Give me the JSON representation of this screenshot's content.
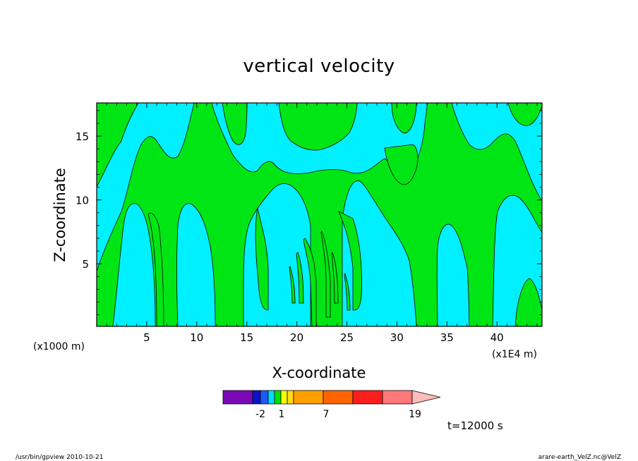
{
  "chart_data": {
    "type": "heatmap",
    "title": "vertical velocity",
    "xlabel": "X-coordinate",
    "ylabel": "Z-coordinate",
    "x_unit_left": "(x1000 m)",
    "x_unit_right": "(x1E4 m)",
    "xlim": [
      0,
      44.5
    ],
    "ylim": [
      0.1,
      17.6
    ],
    "x_ticks": [
      "5",
      "10",
      "15",
      "20",
      "25",
      "30",
      "35",
      "40"
    ],
    "x_tick_values": [
      5,
      10,
      15,
      20,
      25,
      30,
      35,
      40
    ],
    "y_ticks": [
      "5",
      "10",
      "15"
    ],
    "y_tick_values": [
      5,
      10,
      15
    ],
    "grid": false,
    "colorbar": {
      "labels": [
        "-2",
        "1",
        "7",
        "19"
      ],
      "colors": [
        "#7a0ab4",
        "#0a14c8",
        "#1e5aff",
        "#00dcff",
        "#00e100",
        "#ffff00",
        "#ffdc14",
        "#ffa000",
        "#ff6400",
        "#ff1e1e",
        "#ff7878",
        "#ffbcbc"
      ]
    },
    "field_colors": {
      "negative": "#00f0ff",
      "positive": "#00e614"
    },
    "time_label": "t=12000 s"
  },
  "footer": {
    "left": "/usr/bin/gpview   2010-10-21",
    "right": "arare-earth_VelZ.nc@VelZ"
  }
}
